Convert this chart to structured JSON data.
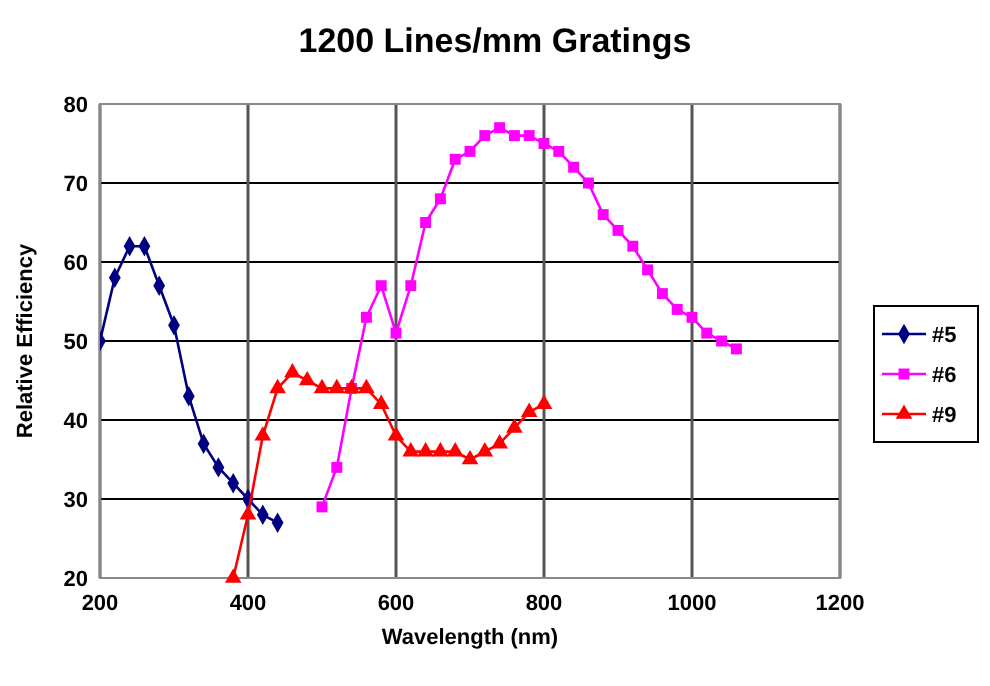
{
  "chart_data": {
    "type": "line",
    "title": "1200 Lines/mm Gratings",
    "xlabel": "Wavelength (nm)",
    "ylabel": "Relative Efficiency",
    "xlim": [
      200,
      1200
    ],
    "xticks": [
      200,
      400,
      600,
      800,
      1000,
      1200
    ],
    "ylim": [
      20,
      80
    ],
    "yticks": [
      20,
      30,
      40,
      50,
      60,
      70,
      80
    ],
    "grid": true,
    "legend": "right",
    "line_style": "solid",
    "series": [
      {
        "name": "#5",
        "color": "#000080",
        "marker": "diamond",
        "x": [
          200,
          220,
          240,
          260,
          280,
          300,
          320,
          340,
          360,
          380,
          400,
          420,
          440
        ],
        "values": [
          50,
          58,
          62,
          62,
          57,
          52,
          43,
          37,
          34,
          32,
          30,
          28,
          27
        ]
      },
      {
        "name": "#6",
        "color": "#ff00ff",
        "marker": "square",
        "x": [
          500,
          520,
          540,
          560,
          580,
          600,
          620,
          640,
          660,
          680,
          700,
          720,
          740,
          760,
          780,
          800,
          820,
          840,
          860,
          880,
          900,
          920,
          940,
          960,
          980,
          1000,
          1020,
          1040,
          1060
        ],
        "values": [
          29,
          34,
          44,
          53,
          57,
          51,
          57,
          65,
          68,
          73,
          74,
          76,
          77,
          76,
          76,
          75,
          74,
          72,
          70,
          66,
          64,
          62,
          59,
          56,
          54,
          53,
          51,
          50,
          49
        ]
      },
      {
        "name": "#9",
        "color": "#ff0000",
        "marker": "triangle",
        "x": [
          380,
          400,
          420,
          440,
          460,
          480,
          500,
          520,
          540,
          560,
          580,
          600,
          620,
          640,
          660,
          680,
          700,
          720,
          740,
          760,
          780,
          800
        ],
        "values": [
          20,
          28,
          38,
          44,
          46,
          45,
          44,
          44,
          44,
          44,
          42,
          38,
          36,
          36,
          36,
          36,
          35,
          36,
          37,
          39,
          41,
          42
        ]
      }
    ]
  }
}
